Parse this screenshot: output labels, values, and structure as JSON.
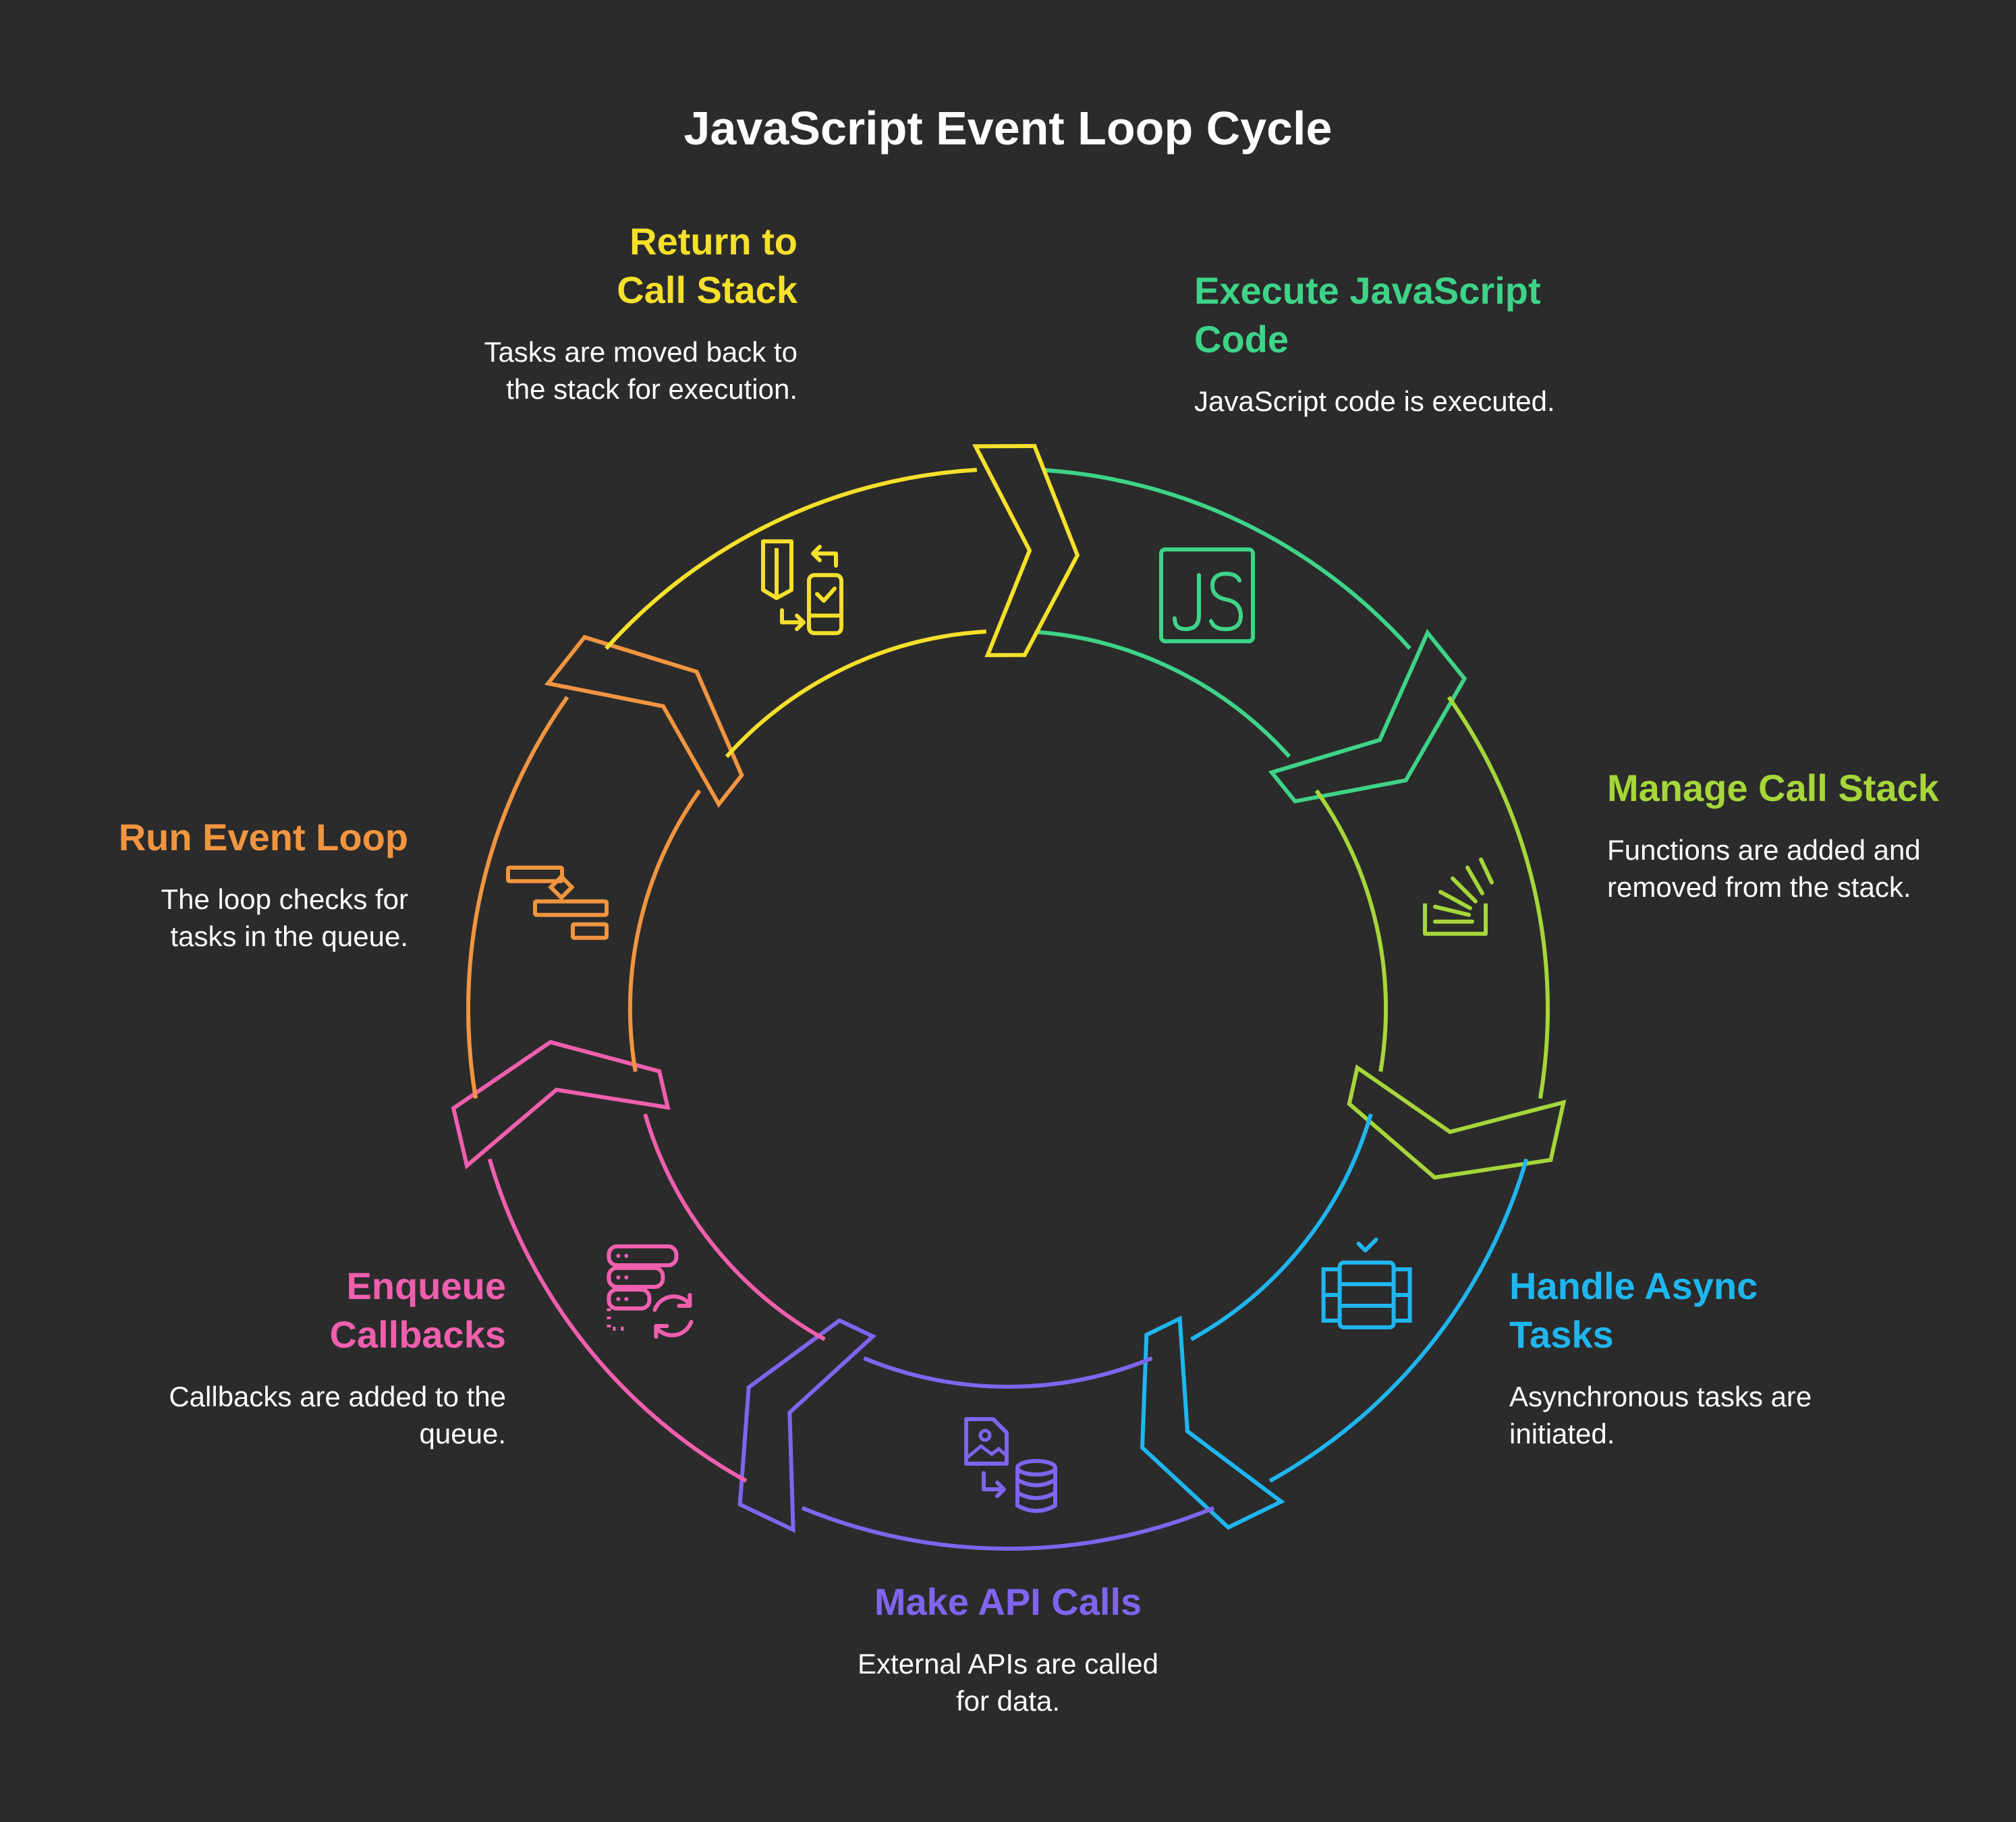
{
  "title": "JavaScript Event Loop Cycle",
  "steps": [
    {
      "id": "execute",
      "title": "Execute JavaScript Code",
      "description": "JavaScript code is executed.",
      "color": "#3ed488",
      "icon": "js-file-icon"
    },
    {
      "id": "manage",
      "title": "Manage Call Stack",
      "description": "Functions are added and removed from the stack.",
      "color": "#a6d63a",
      "icon": "stack-icon"
    },
    {
      "id": "async",
      "title": "Handle Async Tasks",
      "description": "Asynchronous tasks are initiated.",
      "color": "#1fb6ef",
      "icon": "server-check-icon"
    },
    {
      "id": "api",
      "title": "Make API Calls",
      "description": "External APIs are called for data.",
      "color": "#7f65ee",
      "icon": "image-database-icon"
    },
    {
      "id": "enqueue",
      "title": "Enqueue Callbacks",
      "description": "Callbacks are added to the queue.",
      "color": "#f05fae",
      "icon": "server-refresh-icon"
    },
    {
      "id": "loop",
      "title": "Run Event Loop",
      "description": "The loop checks for tasks in the queue.",
      "color": "#f29540",
      "icon": "flowchart-icon"
    },
    {
      "id": "return",
      "title": "Return to Call Stack",
      "description": "Tasks are moved back to the stack for execution.",
      "color": "#f5e02b",
      "icon": "transfer-icon"
    }
  ]
}
